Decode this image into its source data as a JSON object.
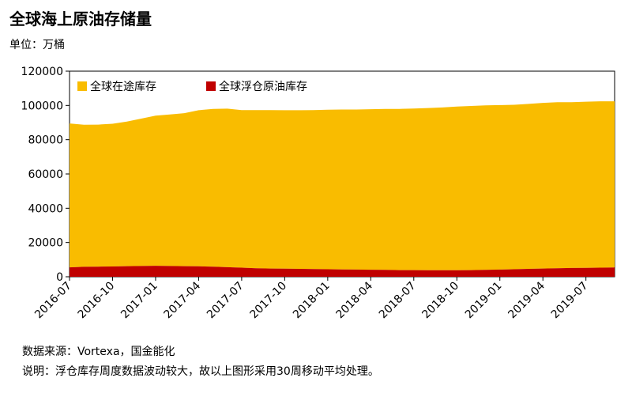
{
  "header": {
    "title": "全球海上原油存储量",
    "unit": "单位：万桶"
  },
  "footer": {
    "source": "数据来源：Vortexa，国金能化",
    "note": "说明：浮仓库存周度数据波动较大，故以上图形采用30周移动平均处理。"
  },
  "colors": {
    "in_transit": "#f9bc00",
    "floating": "#c00000"
  },
  "chart_data": {
    "type": "area",
    "stacked": true,
    "title": "全球海上原油存储量",
    "ylabel": "单位：万桶",
    "ylim": [
      0,
      120000
    ],
    "yticks": [
      0,
      20000,
      40000,
      60000,
      80000,
      100000,
      120000
    ],
    "ytick_labels": [
      "0",
      "20000",
      "40000",
      "60000",
      "80000",
      "100000",
      "120000"
    ],
    "xlim": [
      "2016-07",
      "2019-09"
    ],
    "xtick_labels": [
      "2016-07",
      "2016-10",
      "2017-01",
      "2017-04",
      "2017-07",
      "2017-10",
      "2018-01",
      "2018-04",
      "2018-07",
      "2018-10",
      "2019-01",
      "2019-04",
      "2019-07"
    ],
    "x": [
      "2016-07",
      "2016-08",
      "2016-09",
      "2016-10",
      "2016-11",
      "2016-12",
      "2017-01",
      "2017-02",
      "2017-03",
      "2017-04",
      "2017-05",
      "2017-06",
      "2017-07",
      "2017-08",
      "2017-09",
      "2017-10",
      "2017-11",
      "2017-12",
      "2018-01",
      "2018-02",
      "2018-03",
      "2018-04",
      "2018-05",
      "2018-06",
      "2018-07",
      "2018-08",
      "2018-09",
      "2018-10",
      "2018-11",
      "2018-12",
      "2019-01",
      "2019-02",
      "2019-03",
      "2019-04",
      "2019-05",
      "2019-06",
      "2019-07",
      "2019-08",
      "2019-09"
    ],
    "legend": {
      "position": "top-left"
    },
    "grid": false,
    "series": [
      {
        "name": "全球浮仓原油库存",
        "values": [
          5500,
          5800,
          5900,
          6000,
          6200,
          6300,
          6400,
          6300,
          6200,
          6100,
          5900,
          5600,
          5300,
          5000,
          4800,
          4700,
          4600,
          4500,
          4400,
          4300,
          4200,
          4100,
          4000,
          3900,
          3900,
          3800,
          3800,
          3800,
          3900,
          4000,
          4200,
          4400,
          4600,
          4800,
          5000,
          5100,
          5200,
          5300,
          5400
        ]
      },
      {
        "name": "全球在途库存",
        "values": [
          84000,
          82900,
          82900,
          83300,
          84400,
          86000,
          87600,
          88400,
          89300,
          91100,
          92100,
          92500,
          92000,
          92300,
          92500,
          92500,
          92600,
          92800,
          93100,
          93300,
          93400,
          93700,
          94000,
          94100,
          94300,
          94700,
          95000,
          95500,
          95800,
          96000,
          96000,
          96000,
          96300,
          96700,
          96900,
          96800,
          97000,
          97100,
          97000
        ]
      }
    ]
  }
}
